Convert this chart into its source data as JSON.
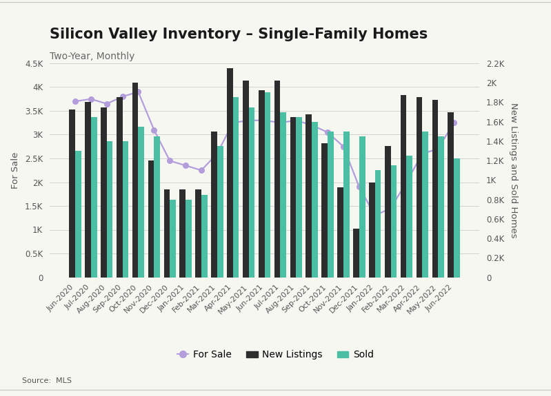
{
  "title": "Silicon Valley Inventory – Single-Family Homes",
  "subtitle": "Two-Year, Monthly",
  "source": "Source:  MLS",
  "months": [
    "Jun-2020",
    "Jul-2020",
    "Aug-2020",
    "Sep-2020",
    "Oct-2020",
    "Nov-2020",
    "Dec-2020",
    "Jan-2021",
    "Feb-2021",
    "Mar-2021",
    "Apr-2021",
    "May-2021",
    "Jun-2021",
    "Jul-2021",
    "Aug-2021",
    "Sep-2021",
    "Oct-2021",
    "Nov-2021",
    "Dec-2021",
    "Jan-2022",
    "Feb-2022",
    "Mar-2022",
    "Apr-2022",
    "May-2022",
    "Jun-2022"
  ],
  "for_sale": [
    3700,
    3750,
    3650,
    3800,
    3900,
    3100,
    2450,
    2350,
    2250,
    2600,
    3250,
    3300,
    3300,
    3250,
    3300,
    3200,
    3050,
    2750,
    1900,
    1300,
    1450,
    2000,
    2600,
    2700,
    3250
  ],
  "new_listings": [
    1725,
    1800,
    1750,
    1850,
    2000,
    1200,
    900,
    900,
    900,
    1500,
    2150,
    2025,
    1925,
    2025,
    1650,
    1675,
    1375,
    925,
    500,
    975,
    1350,
    1875,
    1850,
    1825,
    1700
  ],
  "sold": [
    1300,
    1650,
    1400,
    1400,
    1550,
    1450,
    800,
    800,
    850,
    1350,
    1850,
    1750,
    1900,
    1700,
    1650,
    1600,
    1500,
    1500,
    1450,
    1100,
    1150,
    1250,
    1500,
    1450,
    1225
  ],
  "bar_color_new_listings": "#2d2d2d",
  "bar_color_sold": "#4abfa3",
  "line_color_for_sale": "#b39ddb",
  "background_color": "#f7f7f2",
  "plot_bg_color": "#f7f7f2",
  "left_ylim": [
    0,
    4500
  ],
  "right_ylim": [
    0,
    2200
  ],
  "left_yticks": [
    0,
    500,
    1000,
    1500,
    2000,
    2500,
    3000,
    3500,
    4000,
    4500
  ],
  "left_yticklabels": [
    "0",
    "0.5K",
    "1K",
    "1.5K",
    "2K",
    "2.5K",
    "3K",
    "3.5K",
    "4K",
    "4.5K"
  ],
  "right_yticks": [
    0,
    200,
    400,
    600,
    800,
    1000,
    1200,
    1400,
    1600,
    1800,
    2000,
    2200
  ],
  "right_yticklabels": [
    "0",
    "0.2K",
    "0.4K",
    "0.6K",
    "0.8K",
    "1K",
    "1.2K",
    "1.4K",
    "1.6K",
    "1.8K",
    "2K",
    "2.2K"
  ],
  "ylabel_left": "For Sale",
  "ylabel_right": "New Listings and Sold Homes",
  "title_fontsize": 15,
  "subtitle_fontsize": 10,
  "tick_fontsize": 8.5,
  "label_fontsize": 9.5,
  "bar_width": 0.38
}
